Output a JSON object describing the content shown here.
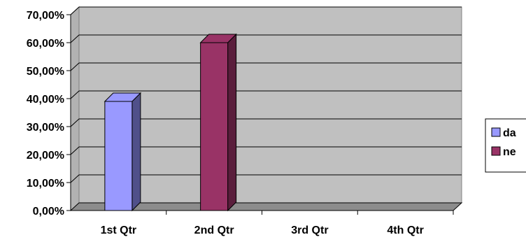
{
  "chart_data": {
    "type": "bar",
    "style": "3d-clustered-column",
    "categories": [
      "1st Qtr",
      "2nd Qtr",
      "3rd Qtr",
      "4th Qtr"
    ],
    "series": [
      {
        "name": "da",
        "color": "#9999ff",
        "side_color": "#50508a",
        "values": [
          0.39,
          null,
          null,
          null
        ]
      },
      {
        "name": "ne",
        "color": "#993366",
        "side_color": "#5a1e3c",
        "values": [
          null,
          0.6,
          null,
          null
        ]
      }
    ],
    "y_ticks": [
      "0,00%",
      "10,00%",
      "20,00%",
      "30,00%",
      "40,00%",
      "50,00%",
      "60,00%",
      "70,00%"
    ],
    "ylim": [
      0,
      0.7
    ],
    "grid": true,
    "plot_background": "#c0c0c0",
    "legend_position": "right",
    "title": "",
    "xlabel": "",
    "ylabel": ""
  }
}
